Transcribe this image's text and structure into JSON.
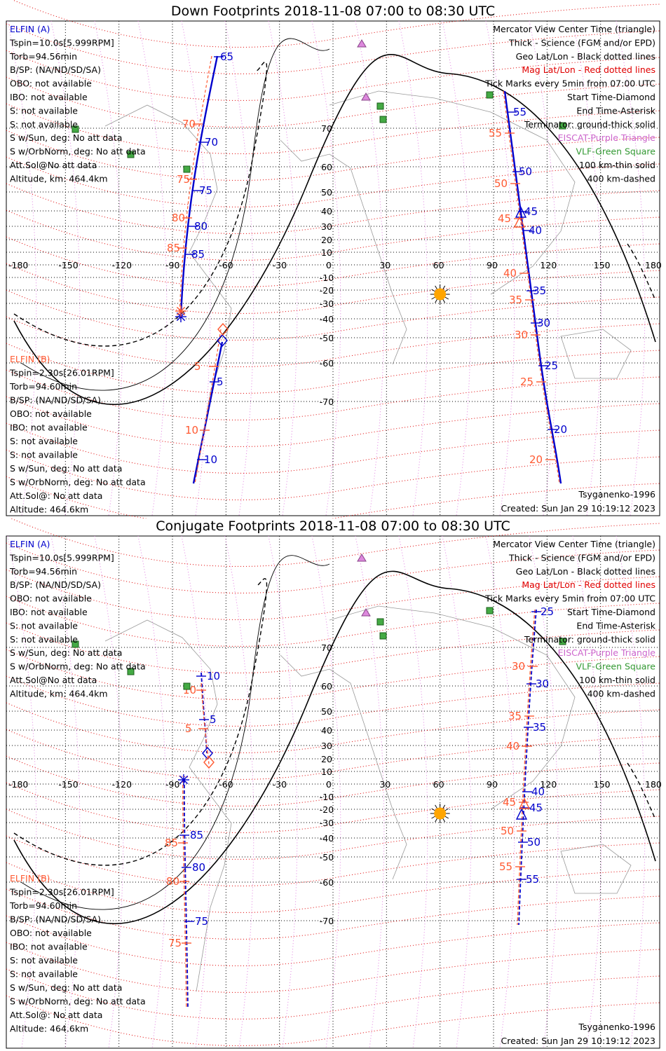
{
  "colors": {
    "elfin_a": "#0000cc",
    "elfin_b": "#ff5a32",
    "geo_grid": "#000000",
    "mag_grid": "#e00000",
    "eiscat": "#cc66cc",
    "vlf": "#339933",
    "sun": "#ffa500",
    "coast": "#999999"
  },
  "common": {
    "info_a": [
      "ELFIN (A)",
      "Tspin=10.0s[5.999RPM]",
      "Torb=94.56min",
      "B/SP: (NA/ND/SD/SA)",
      "OBO: not available",
      "IBO: not available",
      "S: not available",
      "S: not available",
      "S w/Sun, deg: No att data",
      "S w/OrbNorm, deg: No att data",
      "Att.Sol@No att data",
      "Altitude, km: 464.4km"
    ],
    "info_b": [
      "ELFIN (B)",
      "Tspin=2.30s[26.01RPM]",
      "Torb=94.60min",
      "B/SP: (NA/ND/SD/SA)",
      "OBO: not available",
      "IBO: not available",
      "S: not available",
      "S: not available",
      "S w/Sun, deg: No att data",
      "S w/OrbNorm, deg: No att data",
      "Att.Sol@: No att data",
      "Altitude: 464.6km"
    ],
    "legend": [
      "Mercator View Center Time (triangle)",
      "Thick - Science (FGM and/or EPD)",
      "Geo Lat/Lon - Black dotted lines",
      "Mag Lat/Lon - Red dotted lines",
      "Tick Marks every 5min from 07:00 UTC",
      "Start Time-Diamond",
      "End Time-Asterisk",
      "Terminator: ground-thick solid",
      "EISCAT-Purple Triangle",
      "VLF-Green Square",
      "100 km-thin solid",
      "400 km-dashed"
    ],
    "model": "Tsyganenko-1996",
    "created": "Created: Sun Jan 29 10:19:12 2023",
    "lon_labels": [
      "-180",
      "-150",
      "-120",
      "-90",
      "-60",
      "-30",
      "0",
      "30",
      "60",
      "90",
      "120",
      "150",
      "180"
    ],
    "lat_labels": [
      "70",
      "60",
      "50",
      "40",
      "30",
      "20",
      "10",
      "-10",
      "-20",
      "-30",
      "-40",
      "-50",
      "-60",
      "-70"
    ]
  },
  "panels": [
    {
      "title": "Down Footprints 2018-11-08 07:00 to 08:30 UTC",
      "a_ticks_left": [
        "65",
        "70",
        "75",
        "80",
        "85"
      ],
      "b_ticks_left": [
        "70",
        "75",
        "80",
        "85"
      ],
      "b_ticks_left2": [
        "5",
        "10"
      ],
      "a_ticks_left2": [
        "5",
        "10"
      ],
      "a_ticks_right": [
        "55",
        "50",
        "45",
        "40",
        "35",
        "30",
        "25",
        "20"
      ],
      "b_ticks_right": [
        "55",
        "50",
        "45",
        "40",
        "35",
        "30",
        "25",
        "20"
      ]
    },
    {
      "title": "Conjugate Footprints 2018-11-08 07:00 to 08:30 UTC",
      "a_ticks_left": [
        "10",
        "5",
        "85",
        "80",
        "75"
      ],
      "b_ticks_left": [
        "10",
        "5",
        "85",
        "80",
        "75"
      ],
      "a_ticks_right": [
        "25",
        "30",
        "35",
        "40",
        "45",
        "50",
        "55"
      ],
      "b_ticks_right": [
        "30",
        "35",
        "40",
        "45",
        "50",
        "55"
      ]
    }
  ]
}
